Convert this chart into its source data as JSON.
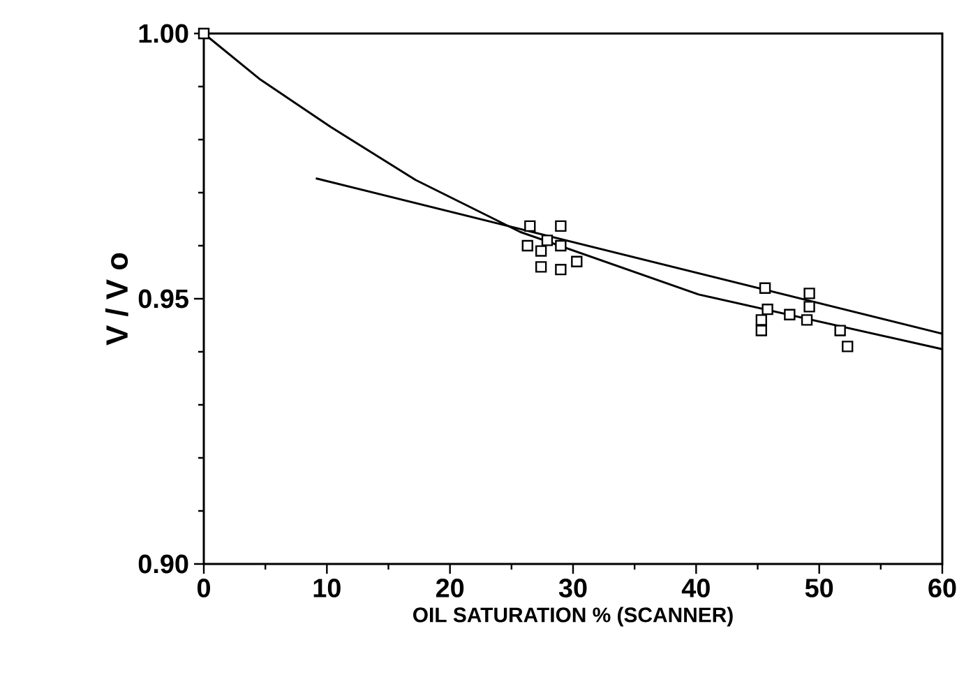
{
  "chart_data": {
    "type": "scatter",
    "xlabel": "OIL SATURATION % (SCANNER)",
    "ylabel": "V / V o",
    "xlim": [
      0,
      60
    ],
    "xticks": [
      0,
      10,
      20,
      30,
      40,
      50,
      60
    ],
    "ylim": [
      0.9,
      1.0
    ],
    "yticks": [
      {
        "value": 0.9,
        "label": "0.90"
      },
      {
        "value": 0.95,
        "label": "0.95"
      },
      {
        "value": 1.0,
        "label": "1.00"
      }
    ],
    "grid": false,
    "series": [
      {
        "marker": "square",
        "color": "#000000",
        "x": [
          0,
          26.5,
          26.3,
          27.4,
          27.4,
          29.0,
          29.0,
          29.0,
          30.3,
          27.9,
          45.6,
          45.3,
          45.3,
          45.8,
          47.6,
          49.2,
          49.2,
          49.0,
          51.7,
          52.3
        ],
        "values": [
          1.0,
          0.9637,
          0.96,
          0.959,
          0.956,
          0.9637,
          0.96,
          0.9555,
          0.957,
          0.961,
          0.952,
          0.946,
          0.944,
          0.948,
          0.947,
          0.951,
          0.9485,
          0.946,
          0.944,
          0.941
        ]
      },
      {
        "type": "line",
        "marker": "none",
        "line_style": "solid",
        "color": "#000000",
        "x": [
          0,
          4.6,
          10.3,
          17.2,
          25.7,
          40.2,
          60
        ],
        "values": [
          1.0,
          0.9913,
          0.9824,
          0.9724,
          0.9626,
          0.9508,
          0.9405
        ]
      },
      {
        "type": "line",
        "marker": "none",
        "line_style": "solid",
        "color": "#000000",
        "x": [
          9.1,
          60
        ],
        "values": [
          0.9727,
          0.9434
        ]
      }
    ]
  }
}
